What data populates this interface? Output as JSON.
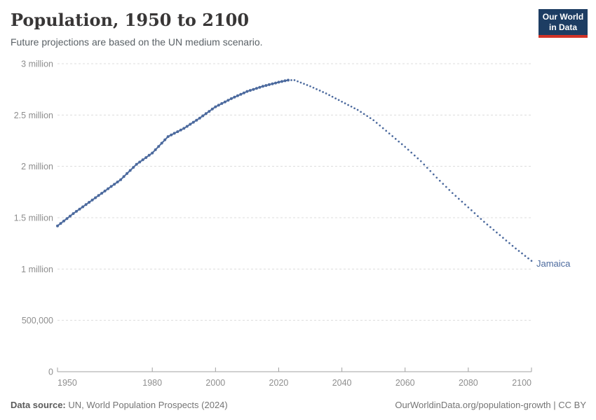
{
  "header": {
    "title": "Population, 1950 to 2100",
    "subtitle": "Future projections are based on the UN medium scenario."
  },
  "logo": {
    "line1": "Our World",
    "line2": "in Data",
    "bg_color": "#1d3d63",
    "accent_color": "#d13327"
  },
  "footer": {
    "source_label": "Data source:",
    "source_text": " UN, World Population Prospects (2024)",
    "attribution": "OurWorldinData.org/population-growth | CC BY"
  },
  "chart_data": {
    "type": "line",
    "title": "Population, 1950 to 2100",
    "subtitle": "Future projections are based on the UN medium scenario.",
    "xlabel": "",
    "ylabel": "",
    "x_range": [
      1950,
      2100
    ],
    "y_range": [
      0,
      3000000
    ],
    "grid": "horizontal-dashed",
    "legend_position": "end-of-line-label",
    "x_ticks": [
      1950,
      1980,
      2000,
      2020,
      2040,
      2060,
      2080,
      2100
    ],
    "y_ticks": [
      {
        "value": 0,
        "label": "0"
      },
      {
        "value": 500000,
        "label": "500,000"
      },
      {
        "value": 1000000,
        "label": "1 million"
      },
      {
        "value": 1500000,
        "label": "1.5 million"
      },
      {
        "value": 2000000,
        "label": "2 million"
      },
      {
        "value": 2500000,
        "label": "2.5 million"
      },
      {
        "value": 3000000,
        "label": "3 million"
      }
    ],
    "projection_start_year": 2024,
    "colors": {
      "line": "#4c6a9e",
      "grid": "#dcdcdc",
      "axis": "#a1a1a1",
      "tick_label": "#8e8e8e"
    },
    "series": [
      {
        "name": "Jamaica",
        "color": "#4c6a9e",
        "points": [
          [
            1950,
            1420000
          ],
          [
            1955,
            1540000
          ],
          [
            1960,
            1650000
          ],
          [
            1965,
            1760000
          ],
          [
            1970,
            1870000
          ],
          [
            1975,
            2020000
          ],
          [
            1980,
            2130000
          ],
          [
            1985,
            2290000
          ],
          [
            1990,
            2370000
          ],
          [
            1995,
            2470000
          ],
          [
            2000,
            2580000
          ],
          [
            2005,
            2660000
          ],
          [
            2010,
            2730000
          ],
          [
            2015,
            2780000
          ],
          [
            2020,
            2820000
          ],
          [
            2023,
            2840000
          ],
          [
            2025,
            2840000
          ],
          [
            2030,
            2780000
          ],
          [
            2035,
            2710000
          ],
          [
            2040,
            2630000
          ],
          [
            2045,
            2550000
          ],
          [
            2050,
            2450000
          ],
          [
            2055,
            2320000
          ],
          [
            2060,
            2190000
          ],
          [
            2065,
            2050000
          ],
          [
            2070,
            1890000
          ],
          [
            2075,
            1740000
          ],
          [
            2080,
            1600000
          ],
          [
            2085,
            1460000
          ],
          [
            2090,
            1330000
          ],
          [
            2095,
            1200000
          ],
          [
            2100,
            1080000
          ]
        ]
      }
    ]
  }
}
